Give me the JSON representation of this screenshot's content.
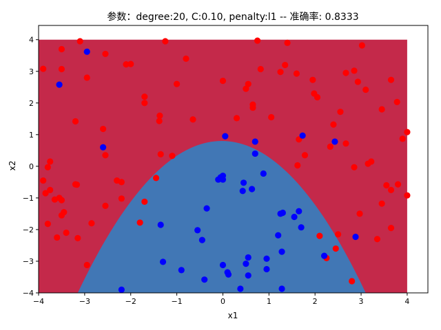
{
  "chart_data": {
    "type": "scatter",
    "title": "参数：degree:20, C:0.10, penalty:l1 -- 准确率: 0.8333",
    "xlabel": "x1",
    "ylabel": "x2",
    "xlim": [
      -4.0,
      4.45
    ],
    "ylim": [
      -4.0,
      4.45
    ],
    "x_ticks": [
      -4,
      -3,
      -2,
      -1,
      0,
      1,
      2,
      3,
      4
    ],
    "y_ticks": [
      -4,
      -3,
      -2,
      -1,
      0,
      1,
      2,
      3,
      4
    ],
    "x_tick_labels": [
      "−4",
      "−3",
      "−2",
      "−1",
      "0",
      "1",
      "2",
      "3",
      "4"
    ],
    "y_tick_labels": [
      "−4",
      "−3",
      "−2",
      "−1",
      "0",
      "1",
      "2",
      "3",
      "4"
    ],
    "grid": false,
    "decision_regions": {
      "extent_x": [
        -4,
        4
      ],
      "extent_y": [
        -4,
        4
      ],
      "outer_class_color": "#c4294a",
      "inner_class_color": "#4177b5",
      "boundary": "parabola",
      "boundary_vertex": [
        0.05,
        0.8
      ],
      "boundary_roots_at_y_minus_4": [
        -3.15,
        3.1
      ]
    },
    "series": [
      {
        "color": "#ff0000",
        "points": [
          [
            -3.1,
            3.95
          ],
          [
            -1.25,
            3.95
          ],
          [
            0.75,
            3.97
          ],
          [
            1.4,
            3.9
          ],
          [
            -3.9,
            3.08
          ],
          [
            -3.5,
            3.7
          ],
          [
            -2.55,
            3.55
          ],
          [
            -2.1,
            3.22
          ],
          [
            -2.0,
            3.23
          ],
          [
            -0.8,
            3.4
          ],
          [
            3.02,
            3.82
          ],
          [
            -3.5,
            3.07
          ],
          [
            -2.95,
            2.8
          ],
          [
            -1.0,
            2.6
          ],
          [
            0.0,
            2.7
          ],
          [
            0.5,
            2.45
          ],
          [
            0.55,
            2.6
          ],
          [
            0.82,
            3.07
          ],
          [
            1.25,
            2.98
          ],
          [
            1.35,
            3.2
          ],
          [
            1.6,
            2.93
          ],
          [
            1.95,
            2.73
          ],
          [
            2.67,
            2.95
          ],
          [
            2.85,
            3.02
          ],
          [
            2.93,
            2.67
          ],
          [
            3.1,
            2.42
          ],
          [
            3.65,
            2.73
          ],
          [
            -1.7,
            2.2
          ],
          [
            -1.7,
            2.0
          ],
          [
            1.98,
            2.3
          ],
          [
            2.05,
            2.18
          ],
          [
            0.65,
            1.95
          ],
          [
            0.65,
            1.85
          ],
          [
            -0.65,
            1.48
          ],
          [
            -1.38,
            1.43
          ],
          [
            -1.37,
            1.6
          ],
          [
            0.3,
            1.52
          ],
          [
            1.05,
            1.55
          ],
          [
            2.55,
            1.72
          ],
          [
            3.45,
            1.8
          ],
          [
            3.78,
            2.03
          ],
          [
            -3.2,
            1.42
          ],
          [
            -2.6,
            1.18
          ],
          [
            2.4,
            1.32
          ],
          [
            3.9,
            0.87
          ],
          [
            4.0,
            1.08
          ],
          [
            -3.75,
            0.15
          ],
          [
            -3.8,
            -0.03
          ],
          [
            -2.55,
            0.35
          ],
          [
            -1.35,
            0.38
          ],
          [
            -1.1,
            0.33
          ],
          [
            1.65,
            0.85
          ],
          [
            1.78,
            0.35
          ],
          [
            2.33,
            0.62
          ],
          [
            2.67,
            0.72
          ],
          [
            3.15,
            0.08
          ],
          [
            3.22,
            0.15
          ],
          [
            -3.9,
            -0.45
          ],
          [
            -3.85,
            -0.85
          ],
          [
            -3.75,
            -0.75
          ],
          [
            -3.2,
            -0.57
          ],
          [
            -3.17,
            -0.58
          ],
          [
            -2.3,
            -0.45
          ],
          [
            -2.2,
            -0.5
          ],
          [
            -1.45,
            -0.37
          ],
          [
            -3.65,
            -1.05
          ],
          [
            -3.55,
            -1.0
          ],
          [
            -3.5,
            -1.07
          ],
          [
            -2.2,
            -1.02
          ],
          [
            -2.55,
            -1.25
          ],
          [
            -1.7,
            -1.12
          ],
          [
            -3.5,
            -1.55
          ],
          [
            -3.45,
            -1.45
          ],
          [
            -2.85,
            -1.8
          ],
          [
            -3.8,
            -1.82
          ],
          [
            -1.8,
            -1.78
          ],
          [
            -3.6,
            -2.25
          ],
          [
            -3.4,
            -2.1
          ],
          [
            -3.15,
            -2.27
          ],
          [
            -2.95,
            -3.12
          ],
          [
            2.85,
            -0.03
          ],
          [
            3.45,
            -1.18
          ],
          [
            3.55,
            -0.6
          ],
          [
            3.65,
            -0.75
          ],
          [
            3.8,
            -0.57
          ],
          [
            4.0,
            -0.92
          ],
          [
            2.97,
            -1.5
          ],
          [
            2.5,
            -2.15
          ],
          [
            2.1,
            -2.2
          ],
          [
            2.45,
            -2.6
          ],
          [
            2.25,
            -2.9
          ],
          [
            2.8,
            -3.63
          ],
          [
            3.35,
            -2.3
          ],
          [
            3.65,
            -1.95
          ],
          [
            1.62,
            0.03
          ]
        ]
      },
      {
        "color": "#0000ff",
        "points": [
          [
            -2.95,
            3.62
          ],
          [
            -3.55,
            2.58
          ],
          [
            -2.6,
            0.6
          ],
          [
            0.05,
            0.95
          ],
          [
            0.7,
            0.78
          ],
          [
            1.73,
            0.97
          ],
          [
            2.43,
            0.78
          ],
          [
            0.7,
            0.4
          ],
          [
            -0.05,
            -0.35
          ],
          [
            0.0,
            -0.3
          ],
          [
            -0.1,
            -0.42
          ],
          [
            0.0,
            -0.42
          ],
          [
            0.45,
            -0.52
          ],
          [
            0.43,
            -0.78
          ],
          [
            0.63,
            -0.72
          ],
          [
            0.88,
            -0.23
          ],
          [
            -0.35,
            -1.33
          ],
          [
            -1.35,
            -1.85
          ],
          [
            -0.55,
            -2.02
          ],
          [
            -0.45,
            -2.33
          ],
          [
            1.25,
            -1.5
          ],
          [
            1.3,
            -1.47
          ],
          [
            1.55,
            -1.6
          ],
          [
            1.65,
            -1.42
          ],
          [
            1.7,
            -1.93
          ],
          [
            1.2,
            -2.18
          ],
          [
            0.55,
            -2.88
          ],
          [
            0.5,
            -3.08
          ],
          [
            0.0,
            -3.12
          ],
          [
            0.95,
            -2.92
          ],
          [
            1.28,
            -2.7
          ],
          [
            2.2,
            -2.83
          ],
          [
            2.88,
            -2.23
          ],
          [
            -1.3,
            -3.02
          ],
          [
            -0.9,
            -3.28
          ],
          [
            -0.4,
            -3.58
          ],
          [
            0.1,
            -3.35
          ],
          [
            0.12,
            -3.42
          ],
          [
            0.55,
            -3.45
          ],
          [
            0.95,
            -3.25
          ],
          [
            -2.2,
            -3.9
          ],
          [
            0.38,
            -3.87
          ],
          [
            1.28,
            -3.87
          ]
        ]
      }
    ]
  }
}
